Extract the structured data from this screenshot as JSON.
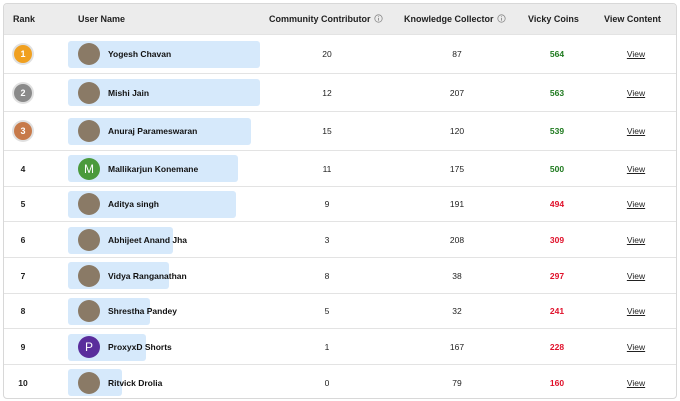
{
  "header": {
    "columns": [
      "Rank",
      "User Name",
      "Community Contributor",
      "Knowledge Collector",
      "Vicky Coins",
      "View Content"
    ]
  },
  "rows": [
    {
      "rank": 1,
      "medal_color": "#f0a020",
      "name": "Yogesh Chavan",
      "community_contributor": 20,
      "knowledge_collector": 87,
      "vicky_coins": 564,
      "coins_color": "#1f7a1f",
      "view": "View"
    },
    {
      "rank": 2,
      "medal_color": "#8a8a8a",
      "name": "Mishi Jain",
      "community_contributor": 12,
      "knowledge_collector": 207,
      "vicky_coins": 563,
      "coins_color": "#1f7a1f",
      "view": "View"
    },
    {
      "rank": 3,
      "medal_color": "#c77a4a",
      "name": "Anuraj Parameswaran",
      "community_contributor": 15,
      "knowledge_collector": 120,
      "vicky_coins": 539,
      "coins_color": "#1f7a1f",
      "view": "View"
    },
    {
      "rank": 4,
      "avatar_letter": "M",
      "avatar_color": "#4b9a3c",
      "name": "Mallikarjun Konemane",
      "community_contributor": 11,
      "knowledge_collector": 175,
      "vicky_coins": 500,
      "coins_color": "#1f7a1f",
      "view": "View"
    },
    {
      "rank": 5,
      "name": "Aditya singh",
      "community_contributor": 9,
      "knowledge_collector": 191,
      "vicky_coins": 494,
      "coins_color": "#e0112b",
      "view": "View"
    },
    {
      "rank": 6,
      "name": "Abhijeet Anand Jha",
      "community_contributor": 3,
      "knowledge_collector": 208,
      "vicky_coins": 309,
      "coins_color": "#e0112b",
      "view": "View"
    },
    {
      "rank": 7,
      "name": "Vidya Ranganathan",
      "community_contributor": 8,
      "knowledge_collector": 38,
      "vicky_coins": 297,
      "coins_color": "#e0112b",
      "view": "View"
    },
    {
      "rank": 8,
      "name": "Shrestha Pandey",
      "community_contributor": 5,
      "knowledge_collector": 32,
      "vicky_coins": 241,
      "coins_color": "#e0112b",
      "view": "View"
    },
    {
      "rank": 9,
      "avatar_letter": "P",
      "avatar_color": "#5a2d9c",
      "name": "ProxyxD Shorts",
      "community_contributor": 1,
      "knowledge_collector": 167,
      "vicky_coins": 228,
      "coins_color": "#e0112b",
      "view": "View"
    },
    {
      "rank": 10,
      "name": "Ritvick Drolia",
      "community_contributor": 0,
      "knowledge_collector": 79,
      "vicky_coins": 160,
      "coins_color": "#e0112b",
      "view": "View"
    }
  ]
}
